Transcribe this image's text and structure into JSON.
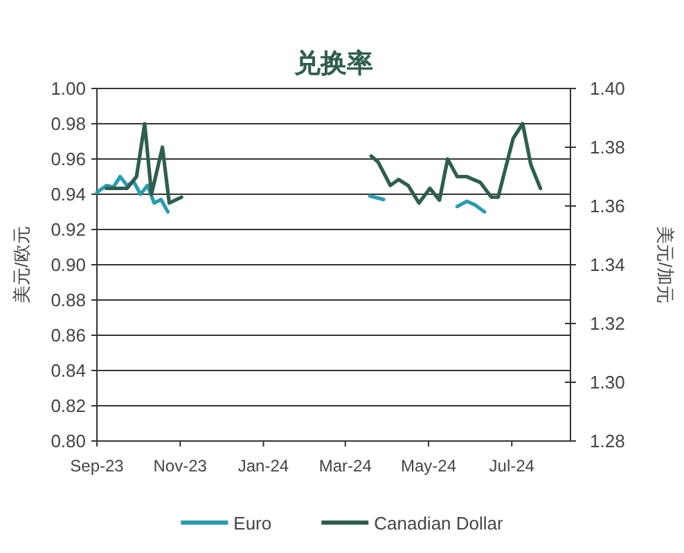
{
  "chart_data": {
    "type": "line",
    "title": "兑换率",
    "ylabel": "美元/欧元",
    "y2label": "美元/加元",
    "xlim": [
      "2023-09-01",
      "2024-08-13"
    ],
    "xticks": [
      {
        "value": "2023-09-01",
        "label": "Sep-23"
      },
      {
        "value": "2023-11-01",
        "label": "Nov-23"
      },
      {
        "value": "2024-01-01",
        "label": "Jan-24"
      },
      {
        "value": "2024-03-01",
        "label": "Mar-24"
      },
      {
        "value": "2024-05-01",
        "label": "May-24"
      },
      {
        "value": "2024-07-01",
        "label": "Jul-24"
      }
    ],
    "ylim": [
      0.8,
      1.0
    ],
    "yticks": [
      {
        "value": 0.8,
        "label": "0.80"
      },
      {
        "value": 0.82,
        "label": "0.82"
      },
      {
        "value": 0.84,
        "label": "0.84"
      },
      {
        "value": 0.86,
        "label": "0.86"
      },
      {
        "value": 0.88,
        "label": "0.88"
      },
      {
        "value": 0.9,
        "label": "0.90"
      },
      {
        "value": 0.92,
        "label": "0.92"
      },
      {
        "value": 0.94,
        "label": "0.94"
      },
      {
        "value": 0.96,
        "label": "0.96"
      },
      {
        "value": 0.98,
        "label": "0.98"
      },
      {
        "value": 1.0,
        "label": "1.00"
      }
    ],
    "y2lim": [
      1.28,
      1.4
    ],
    "y2ticks": [
      {
        "value": 1.28,
        "label": "1.28"
      },
      {
        "value": 1.3,
        "label": "1.30"
      },
      {
        "value": 1.32,
        "label": "1.32"
      },
      {
        "value": 1.34,
        "label": "1.34"
      },
      {
        "value": 1.36,
        "label": "1.36"
      },
      {
        "value": 1.38,
        "label": "1.38"
      },
      {
        "value": 1.4,
        "label": "1.40"
      }
    ],
    "grid": "y",
    "legend": "bottom",
    "line_style": "solid",
    "series": [
      {
        "name": "Euro",
        "color": "#2a9bb0",
        "x": [
          "2023-09-01",
          "2023-09-08",
          "2023-09-13",
          "2023-09-18",
          "2023-09-23",
          "2023-09-28",
          "2023-10-03",
          "2023-10-08",
          "2023-10-13",
          "2023-10-18",
          "2023-10-23",
          "2024-01-01",
          "2024-03-19",
          "2024-03-29",
          "2024-04-20",
          "2024-05-22",
          "2024-05-29",
          "2024-06-04",
          "2024-06-11"
        ],
        "values": [
          0.941,
          0.945,
          0.944,
          0.95,
          0.945,
          0.947,
          0.94,
          0.945,
          0.935,
          0.937,
          0.93,
          null,
          0.939,
          0.937,
          null,
          0.933,
          0.936,
          0.934,
          0.93
        ]
      },
      {
        "name": "Canadian Dollar",
        "color": "#2e5e4e",
        "axis": "y2",
        "x": [
          "2023-09-08",
          "2023-09-16",
          "2023-09-23",
          "2023-09-30",
          "2023-10-06",
          "2023-10-11",
          "2023-10-19",
          "2023-10-24",
          "2023-11-02",
          "2024-01-01",
          "2024-03-20",
          "2024-03-25",
          "2024-04-03",
          "2024-04-09",
          "2024-04-16",
          "2024-04-24",
          "2024-05-02",
          "2024-05-09",
          "2024-05-15",
          "2024-05-22",
          "2024-05-29",
          "2024-06-08",
          "2024-06-16",
          "2024-06-21",
          "2024-07-02",
          "2024-07-09",
          "2024-07-15",
          "2024-07-22"
        ],
        "values": [
          1.366,
          1.366,
          1.366,
          1.37,
          1.388,
          1.364,
          1.38,
          1.361,
          1.363,
          null,
          1.377,
          1.375,
          1.367,
          1.369,
          1.367,
          1.361,
          1.366,
          1.362,
          1.376,
          1.37,
          1.37,
          1.368,
          1.363,
          1.363,
          1.383,
          1.388,
          1.374,
          1.366
        ]
      }
    ]
  }
}
